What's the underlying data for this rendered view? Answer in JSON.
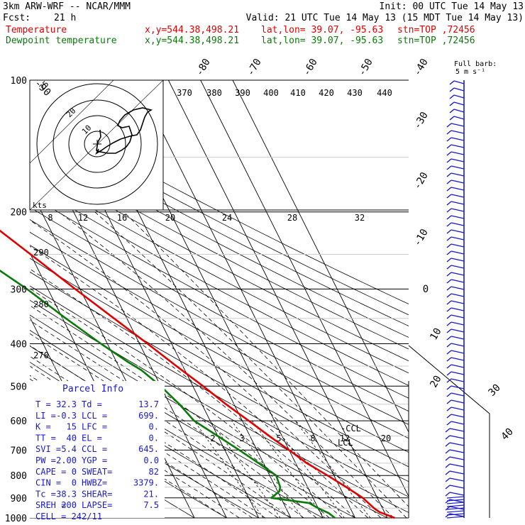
{
  "header": {
    "model": "3km ARW-WRF -- NCAR/MMM",
    "init": "Init: 00 UTC Tue 14 May 13",
    "fcst_label": "Fcst:",
    "fcst_value": "21 h",
    "valid": "Valid: 21 UTC Tue 14 May 13 (15 MDT Tue 14 May 13)",
    "temp_label": "Temperature",
    "dew_label": "Dewpoint temperature",
    "xy": "x,y=544.38,498.21",
    "latlon": "lat,lon= 39.07, -95.63",
    "stn": "stn=TOP ,72456"
  },
  "colors": {
    "temperature": "#e00000",
    "dewpoint": "#0a7a0a",
    "barbs": "#1a1acc",
    "grid": "#000000"
  },
  "barb_legend": {
    "title": "Full barb:",
    "units": "5 m s⁻¹"
  },
  "parcel_info": {
    "title": "Parcel Info",
    "rows": [
      [
        "T  =",
        "32.3",
        "Td =",
        "13.7"
      ],
      [
        "LI =",
        "-0.3",
        "LCL =",
        "699."
      ],
      [
        "K  =",
        "15",
        "LFC =",
        "0."
      ],
      [
        "TT =",
        "40",
        "EL  =",
        "0."
      ],
      [
        "SVI =",
        "5.4",
        "CCL =",
        "645."
      ],
      [
        "PW =",
        "2.00",
        "YGP =",
        "0.0"
      ],
      [
        "CAPE =",
        "0",
        "SWEAT=",
        "82"
      ],
      [
        "CIN  =",
        "0",
        "HWBZ=",
        "3379."
      ],
      [
        "Tc =",
        "38.3",
        "SHEAR=",
        "21."
      ],
      [
        "SREH =",
        "200",
        "LAPSE=",
        "7.5"
      ],
      [
        "CELL = 242/11",
        "",
        "",
        ""
      ]
    ]
  },
  "level_labels": {
    "ccl": "CCL",
    "lcl": "LCL"
  },
  "hodograph_kts_label": "kts",
  "chart_data": {
    "type": "line",
    "title": "",
    "ylabel": "Pressure (hPa)",
    "pressure_ticks": [
      "100",
      "200",
      "300",
      "400",
      "500",
      "600",
      "700",
      "800",
      "900",
      "1000"
    ],
    "isotherm_labels": [
      "-90",
      "-80",
      "-70",
      "-60",
      "-50",
      "-40",
      "-30",
      "-20",
      "-10",
      "0",
      "10",
      "20",
      "30",
      "40"
    ],
    "theta_labels": [
      "370",
      "380",
      "390",
      "400",
      "410",
      "420",
      "430",
      "440"
    ],
    "theta_left_labels": [
      "290",
      "280",
      "270"
    ],
    "mixing_ratio_labels": [
      "2",
      "3",
      "5",
      "8",
      "12",
      "20"
    ],
    "hodograph_top_labels": [
      "8",
      "12",
      "16",
      "20",
      "24",
      "28",
      "32"
    ],
    "hodograph_ring_labels": [
      "25",
      "20",
      "10"
    ],
    "series": [
      {
        "name": "Temperature",
        "points": [
          [
            1000,
            32.3
          ],
          [
            970,
            28.5
          ],
          [
            950,
            27.4
          ],
          [
            900,
            25.5
          ],
          [
            850,
            22.0
          ],
          [
            800,
            18.0
          ],
          [
            750,
            13.5
          ],
          [
            700,
            10.0
          ],
          [
            650,
            6.0
          ],
          [
            600,
            2.0
          ],
          [
            550,
            -2.5
          ],
          [
            500,
            -6.8
          ],
          [
            450,
            -12.0
          ],
          [
            400,
            -17.5
          ],
          [
            350,
            -24.0
          ],
          [
            300,
            -31.5
          ],
          [
            250,
            -40.0
          ],
          [
            200,
            -50.5
          ],
          [
            180,
            -55.0
          ],
          [
            160,
            -58.0
          ],
          [
            150,
            -59.5
          ],
          [
            140,
            -58.0
          ],
          [
            130,
            -56.0
          ],
          [
            115,
            -52.0
          ],
          [
            100,
            -50.0
          ]
        ]
      },
      {
        "name": "Dewpoint temperature",
        "points": [
          [
            1000,
            13.7
          ],
          [
            975,
            12.5
          ],
          [
            950,
            10.0
          ],
          [
            925,
            8.0
          ],
          [
            900,
            -3.0
          ],
          [
            870,
            0.5
          ],
          [
            850,
            1.5
          ],
          [
            800,
            2.0
          ],
          [
            750,
            -1.5
          ],
          [
            700,
            -5.5
          ],
          [
            650,
            -10.0
          ],
          [
            600,
            -15.0
          ],
          [
            550,
            -17.0
          ],
          [
            500,
            -20.0
          ],
          [
            460,
            -23.5
          ],
          [
            440,
            -26.5
          ],
          [
            400,
            -32.0
          ],
          [
            350,
            -39.0
          ],
          [
            300,
            -46.5
          ],
          [
            250,
            -57.0
          ],
          [
            200,
            -67.5
          ],
          [
            150,
            -73.0
          ],
          [
            130,
            -73.0
          ],
          [
            115,
            -73.0
          ],
          [
            100,
            -73.0
          ]
        ]
      }
    ]
  }
}
